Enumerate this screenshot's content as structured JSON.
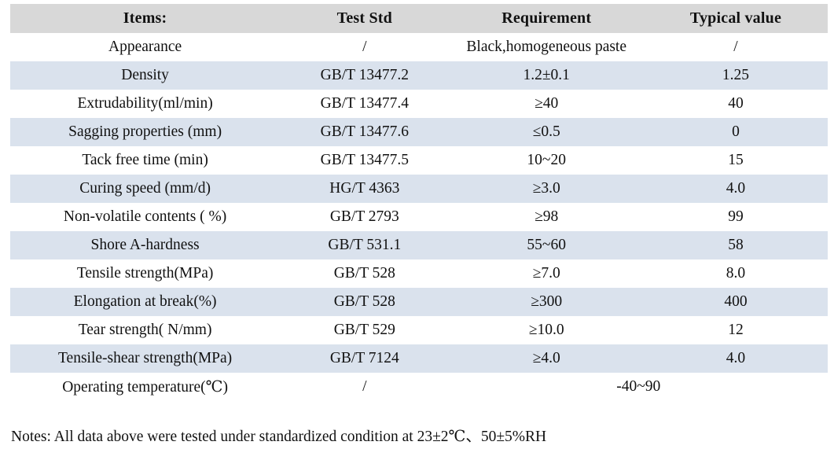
{
  "table": {
    "headers": {
      "items": "Items:",
      "test_std": "Test Std",
      "requirement": "Requirement",
      "typical_value": "Typical value"
    },
    "rows": [
      {
        "item": "Appearance",
        "test_std": "/",
        "requirement": "Black,homogeneous paste",
        "typical_value": "/"
      },
      {
        "item": "Density",
        "test_std": "GB/T 13477.2",
        "requirement": "1.2±0.1",
        "typical_value": "1.25"
      },
      {
        "item": "Extrudability(ml/min)",
        "test_std": "GB/T 13477.4",
        "requirement": "≥40",
        "typical_value": "40"
      },
      {
        "item": "Sagging properties (mm)",
        "test_std": "GB/T 13477.6",
        "requirement": "≤0.5",
        "typical_value": "0"
      },
      {
        "item": "Tack free time (min)",
        "test_std": "GB/T 13477.5",
        "requirement": "10~20",
        "typical_value": "15"
      },
      {
        "item": "Curing speed (mm/d)",
        "test_std": "HG/T 4363",
        "requirement": "≥3.0",
        "typical_value": "4.0"
      },
      {
        "item": "Non-volatile contents ( %)",
        "test_std": "GB/T 2793",
        "requirement": "≥98",
        "typical_value": "99"
      },
      {
        "item": "Shore A-hardness",
        "test_std": "GB/T 531.1",
        "requirement": "55~60",
        "typical_value": "58"
      },
      {
        "item": "Tensile strength(MPa)",
        "test_std": "GB/T 528",
        "requirement": "≥7.0",
        "typical_value": "8.0"
      },
      {
        "item": "Elongation at break(%)",
        "test_std": "GB/T 528",
        "requirement": "≥300",
        "typical_value": "400"
      },
      {
        "item": "Tear strength( N/mm)",
        "test_std": "GB/T 529",
        "requirement": "≥10.0",
        "typical_value": "12"
      },
      {
        "item": "Tensile-shear strength(MPa)",
        "test_std": "GB/T 7124",
        "requirement": "≥4.0",
        "typical_value": "4.0"
      },
      {
        "item": "Operating temperature(℃)",
        "test_std": "/",
        "requirement_merged": "-40~90"
      }
    ]
  },
  "notes": "Notes: All data above were tested under standardized condition at 23±2℃、50±5%RH",
  "colors": {
    "header_bg": "#d8d8d8",
    "stripe_bg": "#dae2ed",
    "row_bg": "#ffffff",
    "text": "#111111"
  }
}
